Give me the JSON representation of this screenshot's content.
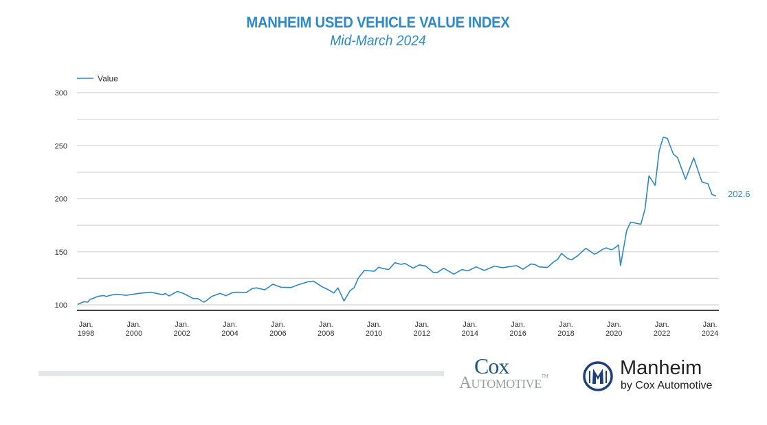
{
  "chart_data": {
    "type": "line",
    "title": "MANHEIM USED VEHICLE VALUE INDEX",
    "subtitle": "Mid-March 2024",
    "xlabel": "",
    "ylabel": "",
    "ylim": [
      100,
      300
    ],
    "yticks": [
      "100",
      "150",
      "200",
      "250",
      "300"
    ],
    "grid_step": 25,
    "grid": true,
    "legend_position": "top-left",
    "xticks": [
      {
        "month": "Jan.",
        "year": "1998"
      },
      {
        "month": "Jan.",
        "year": "2000"
      },
      {
        "month": "Jan.",
        "year": "2002"
      },
      {
        "month": "Jan.",
        "year": "2004"
      },
      {
        "month": "Jan.",
        "year": "2006"
      },
      {
        "month": "Jan.",
        "year": "2008"
      },
      {
        "month": "Jan.",
        "year": "2010"
      },
      {
        "month": "Jan.",
        "year": "2012"
      },
      {
        "month": "Jan.",
        "year": "2014"
      },
      {
        "month": "Jan.",
        "year": "2016"
      },
      {
        "month": "Jan.",
        "year": "2018"
      },
      {
        "month": "Jan.",
        "year": "2020"
      },
      {
        "month": "Jan.",
        "year": "2022"
      },
      {
        "month": "Jan.",
        "year": "2024"
      }
    ],
    "series": [
      {
        "name": "Value",
        "color": "#2e86c1",
        "end_label": "202.6",
        "points": [
          [
            "1998-01",
            100.4
          ],
          [
            "1998-04",
            103
          ],
          [
            "1998-06",
            102.6
          ],
          [
            "1998-07",
            105
          ],
          [
            "1998-11",
            108
          ],
          [
            "1999-02",
            108.8
          ],
          [
            "1999-03",
            107.8
          ],
          [
            "1999-05",
            109
          ],
          [
            "1999-08",
            110
          ],
          [
            "2000-01",
            109
          ],
          [
            "2000-07",
            110.8
          ],
          [
            "2001-01",
            111.9
          ],
          [
            "2001-07",
            109.5
          ],
          [
            "2001-08",
            110.8
          ],
          [
            "2001-10",
            108.4
          ],
          [
            "2002-02",
            112.7
          ],
          [
            "2002-05",
            110.8
          ],
          [
            "2002-10",
            105.8
          ],
          [
            "2002-12",
            106
          ],
          [
            "2003-03",
            102.6
          ],
          [
            "2003-04",
            103.5
          ],
          [
            "2003-07",
            108
          ],
          [
            "2003-11",
            110.8
          ],
          [
            "2004-02",
            108.6
          ],
          [
            "2004-05",
            111.4
          ],
          [
            "2004-07",
            111.9
          ],
          [
            "2004-12",
            111.7
          ],
          [
            "2005-03",
            115.5
          ],
          [
            "2005-05",
            116
          ],
          [
            "2005-09",
            114.2
          ],
          [
            "2006-01",
            119.4
          ],
          [
            "2006-05",
            116.6
          ],
          [
            "2006-10",
            116.4
          ],
          [
            "2007-01",
            118.6
          ],
          [
            "2007-06",
            121.6
          ],
          [
            "2007-09",
            122.4
          ],
          [
            "2008-01",
            117.3
          ],
          [
            "2008-04",
            114.5
          ],
          [
            "2008-07",
            111.2
          ],
          [
            "2008-09",
            116
          ],
          [
            "2008-12",
            103.7
          ],
          [
            "2009-03",
            113.4
          ],
          [
            "2009-05",
            116.2
          ],
          [
            "2009-07",
            125.2
          ],
          [
            "2009-10",
            132.4
          ],
          [
            "2010-03",
            131.7
          ],
          [
            "2010-05",
            135.4
          ],
          [
            "2010-08",
            133.9
          ],
          [
            "2010-10",
            133.3
          ],
          [
            "2011-01",
            139.7
          ],
          [
            "2011-04",
            138.2
          ],
          [
            "2011-06",
            139
          ],
          [
            "2011-10",
            134.7
          ],
          [
            "2012-01",
            137.7
          ],
          [
            "2012-04",
            136.7
          ],
          [
            "2012-08",
            130.6
          ],
          [
            "2012-10",
            130.6
          ],
          [
            "2013-01",
            134.5
          ],
          [
            "2013-06",
            128.9
          ],
          [
            "2013-10",
            133.2
          ],
          [
            "2014-01",
            132.1
          ],
          [
            "2014-05",
            135.8
          ],
          [
            "2014-09",
            132.4
          ],
          [
            "2015-02",
            136.5
          ],
          [
            "2015-06",
            135
          ],
          [
            "2015-11",
            136.5
          ],
          [
            "2016-01",
            136.9
          ],
          [
            "2016-04",
            133.5
          ],
          [
            "2016-08",
            138.6
          ],
          [
            "2016-10",
            138
          ],
          [
            "2016-12",
            135.8
          ],
          [
            "2017-04",
            135.2
          ],
          [
            "2017-07",
            140.4
          ],
          [
            "2017-09",
            142.7
          ],
          [
            "2017-11",
            148.5
          ],
          [
            "2018-02",
            143.6
          ],
          [
            "2018-04",
            142.5
          ],
          [
            "2018-07",
            146.4
          ],
          [
            "2018-10",
            151.8
          ],
          [
            "2018-11",
            153.3
          ],
          [
            "2019-03",
            147.9
          ],
          [
            "2019-04",
            148.3
          ],
          [
            "2019-07",
            152.2
          ],
          [
            "2019-09",
            153.7
          ],
          [
            "2019-11",
            152.2
          ],
          [
            "2019-12",
            152.2
          ],
          [
            "2020-02",
            154.8
          ],
          [
            "2020-03",
            156.5
          ],
          [
            "2020-04",
            137
          ],
          [
            "2020-07",
            170
          ],
          [
            "2020-09",
            178
          ],
          [
            "2021-02",
            176
          ],
          [
            "2021-04",
            190
          ],
          [
            "2021-06",
            221.7
          ],
          [
            "2021-09",
            212.6
          ],
          [
            "2021-11",
            245
          ],
          [
            "2022-01",
            258
          ],
          [
            "2022-03",
            257
          ],
          [
            "2022-06",
            242
          ],
          [
            "2022-08",
            239
          ],
          [
            "2022-12",
            218.4
          ],
          [
            "2023-04",
            238.5
          ],
          [
            "2023-08",
            216
          ],
          [
            "2023-11",
            214
          ],
          [
            "2024-01",
            204
          ],
          [
            "2024-03",
            202.6
          ]
        ]
      }
    ]
  },
  "logos": {
    "cox_line1": "Cox",
    "cox_line2": "Automotive",
    "cox_tm": "TM",
    "manheim_name": "Manheim",
    "manheim_tagline": "by Cox Automotive",
    "manheim_mark": "M",
    "brand_navy": "#1d3f7a"
  }
}
